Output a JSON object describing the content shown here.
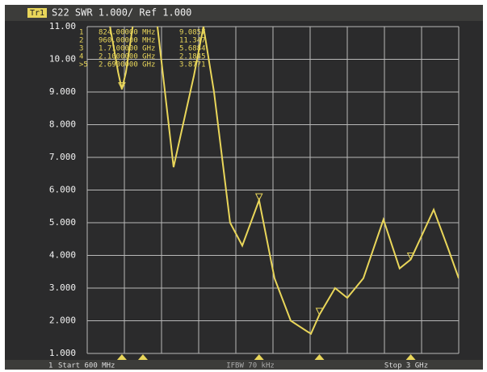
{
  "chart_data": {
    "type": "line",
    "header": {
      "trace": "Tr1",
      "title": "S22  SWR 1.000/ Ref 1.000"
    },
    "footer": {
      "channel": "1",
      "start": "Start 600 MHz",
      "ifbw": "IFBW 70 kHz",
      "stop": "Stop 3 GHz"
    },
    "xlim": [
      600,
      3000
    ],
    "xticks": [
      600,
      840,
      1080,
      1320,
      1560,
      1800,
      2040,
      2280,
      2520,
      2760,
      3000
    ],
    "ylim": [
      1,
      11
    ],
    "yticks": [
      {
        "value": 1,
        "label": "1.000"
      },
      {
        "value": 2,
        "label": "2.000"
      },
      {
        "value": 3,
        "label": "3.000"
      },
      {
        "value": 4,
        "label": "4.000"
      },
      {
        "value": 5,
        "label": "5.000"
      },
      {
        "value": 6,
        "label": "6.000"
      },
      {
        "value": 7,
        "label": "7.000"
      },
      {
        "value": 8,
        "label": "8.000"
      },
      {
        "value": 9,
        "label": "9.000"
      },
      {
        "value": 10,
        "label": "10.00"
      },
      {
        "value": 11,
        "label": "11.00"
      }
    ],
    "grid": true,
    "series": [
      {
        "color": "#e9d65a",
        "x": [
          740,
          800,
          824,
          850,
          900,
          960,
          1054,
          1158,
          1289,
          1351,
          1419,
          1523,
          1602,
          1710,
          1810,
          1915,
          2045,
          2100,
          2201,
          2280,
          2384,
          2514,
          2618,
          2690,
          2838,
          2932,
          3000
        ],
        "values": [
          11.2,
          9.6,
          9.0857,
          9.6,
          11.2,
          11.347,
          11.0,
          6.7,
          9.5,
          11.0,
          9.0,
          5.0,
          4.3,
          5.6884,
          3.3,
          2.0,
          1.6,
          2.1845,
          3.0,
          2.7,
          3.3,
          5.1,
          3.6,
          3.8771,
          5.4,
          4.2,
          3.3
        ]
      }
    ],
    "markers": [
      {
        "id": "1",
        "x": 824,
        "x_label": "824.00000 MHz",
        "y": 9.0857
      },
      {
        "id": "2",
        "x": 960,
        "x_label": "960.00000 MHz",
        "y": 11.347
      },
      {
        "id": "3",
        "x": 1710,
        "x_label": "1.7100000 GHz",
        "y": 5.6884
      },
      {
        "id": "4",
        "x": 2100,
        "x_label": "2.1000000 GHz",
        "y": 2.1845
      },
      {
        "id": ">5",
        "x": 2690,
        "x_label": "2.6900000 GHz",
        "y": 3.8771
      }
    ]
  }
}
